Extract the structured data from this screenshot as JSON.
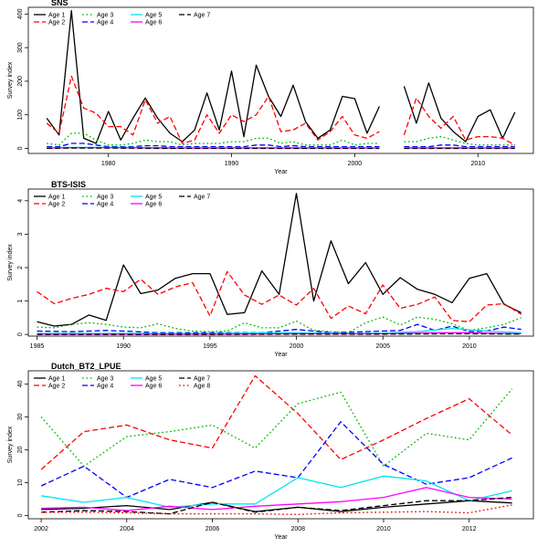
{
  "chart_data": [
    {
      "type": "line",
      "title": "SNS",
      "xlabel": "Year",
      "ylabel": "Survey index",
      "xlim": [
        1973.5,
        2014.5
      ],
      "ylim": [
        -15,
        420
      ],
      "xticks": [
        1980,
        1990,
        2000,
        2010
      ],
      "yticks": [
        0,
        100,
        200,
        300,
        400
      ],
      "legend_position": "top-left",
      "series": [
        {
          "name": "Age 1",
          "color": "#000000",
          "dash": "solid",
          "x": [
            1975,
            1976,
            1977,
            1978,
            1979,
            1980,
            1981,
            1982,
            1983,
            1984,
            1985,
            1986,
            1987,
            1988,
            1989,
            1990,
            1991,
            1992,
            1993,
            1994,
            1995,
            1996,
            1997,
            1998,
            1999,
            2000,
            2001,
            2002,
            null,
            2004,
            2005,
            2006,
            2007,
            2008,
            2009,
            2010,
            2011,
            2012,
            2013
          ],
          "y": [
            90,
            40,
            410,
            30,
            15,
            110,
            25,
            90,
            150,
            90,
            45,
            20,
            55,
            165,
            55,
            230,
            35,
            248,
            155,
            95,
            188,
            80,
            30,
            55,
            155,
            148,
            45,
            125,
            null,
            185,
            75,
            195,
            90,
            50,
            20,
            95,
            115,
            30,
            108
          ]
        },
        {
          "name": "Age 2",
          "color": "#ff0000",
          "dash": "dashed",
          "x": [
            1975,
            1976,
            1977,
            1978,
            1979,
            1980,
            1981,
            1982,
            1983,
            1984,
            1985,
            1986,
            1987,
            1988,
            1989,
            1990,
            1991,
            1992,
            1993,
            1994,
            1995,
            1996,
            1997,
            1998,
            1999,
            2000,
            2001,
            2002,
            null,
            2004,
            2005,
            2006,
            2007,
            2008,
            2009,
            2010,
            2011,
            2012,
            2013
          ],
          "y": [
            75,
            45,
            215,
            120,
            105,
            65,
            65,
            40,
            145,
            75,
            95,
            15,
            25,
            100,
            45,
            100,
            80,
            100,
            155,
            50,
            55,
            75,
            25,
            50,
            95,
            40,
            30,
            50,
            null,
            40,
            150,
            95,
            60,
            95,
            25,
            35,
            35,
            30,
            10
          ]
        },
        {
          "name": "Age 3",
          "color": "#00bb00",
          "dash": "dotted",
          "x": [
            1975,
            1976,
            1977,
            1978,
            1979,
            1980,
            1981,
            1982,
            1983,
            1984,
            1985,
            1986,
            1987,
            1988,
            1989,
            1990,
            1991,
            1992,
            1993,
            1994,
            1995,
            1996,
            1997,
            1998,
            1999,
            2000,
            2001,
            2002,
            null,
            2004,
            2005,
            2006,
            2007,
            2008,
            2009,
            2010,
            2011,
            2012,
            2013
          ],
          "y": [
            15,
            10,
            45,
            45,
            25,
            10,
            10,
            15,
            25,
            20,
            20,
            10,
            15,
            15,
            15,
            20,
            20,
            30,
            30,
            15,
            20,
            10,
            10,
            10,
            25,
            10,
            15,
            15,
            null,
            20,
            20,
            30,
            35,
            25,
            15,
            10,
            10,
            10,
            10
          ]
        },
        {
          "name": "Age 4",
          "color": "#0000ff",
          "dash": "dashed",
          "x": [
            1975,
            1976,
            1977,
            1978,
            1979,
            1980,
            1981,
            1982,
            1983,
            1984,
            1985,
            1986,
            1987,
            1988,
            1989,
            1990,
            1991,
            1992,
            1993,
            1994,
            1995,
            1996,
            1997,
            1998,
            1999,
            2000,
            2001,
            2002,
            null,
            2004,
            2005,
            2006,
            2007,
            2008,
            2009,
            2010,
            2011,
            2012,
            2013
          ],
          "y": [
            5,
            5,
            15,
            15,
            10,
            5,
            5,
            5,
            8,
            8,
            5,
            5,
            5,
            5,
            5,
            5,
            5,
            10,
            10,
            5,
            8,
            5,
            5,
            5,
            5,
            5,
            5,
            5,
            null,
            5,
            5,
            5,
            10,
            10,
            5,
            5,
            5,
            5,
            5
          ]
        },
        {
          "name": "Age 5",
          "color": "#00e5ee",
          "dash": "solid",
          "x": [
            1975,
            1977,
            1980,
            1985,
            1990,
            1995,
            2000,
            2002,
            null,
            2004,
            2008,
            2013
          ],
          "y": [
            2,
            3,
            3,
            2,
            2,
            2,
            2,
            2,
            null,
            2,
            2,
            2
          ]
        },
        {
          "name": "Age 6",
          "color": "#ff00ff",
          "dash": "solid",
          "x": [
            1975,
            1977,
            1980,
            1985,
            1990,
            1995,
            2000,
            2002,
            null,
            2004,
            2008,
            2013
          ],
          "y": [
            1,
            2,
            2,
            1,
            1,
            1,
            1,
            1,
            null,
            1,
            1,
            1
          ]
        },
        {
          "name": "Age 7",
          "color": "#000000",
          "dash": "dashed",
          "x": [
            1975,
            1977,
            1980,
            1985,
            1990,
            1995,
            2000,
            2002,
            null,
            2004,
            2008,
            2013
          ],
          "y": [
            0,
            1,
            1,
            0,
            0,
            0,
            0,
            0,
            null,
            0,
            0,
            0
          ]
        }
      ]
    },
    {
      "type": "line",
      "title": "BTS-ISIS",
      "xlabel": "Year",
      "ylabel": "Survey index",
      "xlim": [
        1984.5,
        2013.7
      ],
      "ylim": [
        -0.05,
        4.35
      ],
      "xticks": [
        1985,
        1990,
        1995,
        2000,
        2005,
        2010
      ],
      "yticks": [
        0,
        1,
        2,
        3,
        4
      ],
      "legend_position": "top-left",
      "series": [
        {
          "name": "Age 1",
          "color": "#000000",
          "dash": "solid",
          "x": [
            1985,
            1986,
            1987,
            1988,
            1989,
            1990,
            1991,
            1992,
            1993,
            1994,
            1995,
            1996,
            1997,
            1998,
            1999,
            2000,
            2001,
            2002,
            2003,
            2004,
            2005,
            2006,
            2007,
            2008,
            2009,
            2010,
            2011,
            2012,
            2013
          ],
          "y": [
            0.38,
            0.25,
            0.3,
            0.58,
            0.42,
            2.08,
            1.22,
            1.33,
            1.68,
            1.82,
            1.82,
            0.6,
            0.65,
            1.9,
            1.2,
            4.22,
            1.0,
            2.8,
            1.52,
            2.15,
            1.2,
            1.7,
            1.35,
            1.2,
            0.95,
            1.68,
            1.82,
            0.9,
            0.65
          ]
        },
        {
          "name": "Age 2",
          "color": "#ff0000",
          "dash": "dashed",
          "x": [
            1985,
            1986,
            1987,
            1988,
            1989,
            1990,
            1991,
            1992,
            1993,
            1994,
            1995,
            1996,
            1997,
            1998,
            1999,
            2000,
            2001,
            2002,
            2003,
            2004,
            2005,
            2006,
            2007,
            2008,
            2009,
            2010,
            2011,
            2012,
            2013
          ],
          "y": [
            1.28,
            0.92,
            1.08,
            1.2,
            1.38,
            1.28,
            1.65,
            1.2,
            1.42,
            1.55,
            0.55,
            1.88,
            1.18,
            0.9,
            1.18,
            0.88,
            1.38,
            0.48,
            0.85,
            0.62,
            1.48,
            0.78,
            0.9,
            1.12,
            0.42,
            0.38,
            0.88,
            0.92,
            0.6
          ]
        },
        {
          "name": "Age 3",
          "color": "#00bb00",
          "dash": "dotted",
          "x": [
            1985,
            1986,
            1987,
            1988,
            1989,
            1990,
            1991,
            1992,
            1993,
            1994,
            1995,
            1996,
            1997,
            1998,
            1999,
            2000,
            2001,
            2002,
            2003,
            2004,
            2005,
            2006,
            2007,
            2008,
            2009,
            2010,
            2011,
            2012,
            2013
          ],
          "y": [
            0.22,
            0.2,
            0.3,
            0.35,
            0.3,
            0.22,
            0.2,
            0.32,
            0.18,
            0.1,
            0.08,
            0.1,
            0.35,
            0.2,
            0.2,
            0.4,
            0.12,
            0.08,
            0.05,
            0.35,
            0.52,
            0.28,
            0.52,
            0.45,
            0.32,
            0.12,
            0.2,
            0.3,
            0.5
          ]
        },
        {
          "name": "Age 4",
          "color": "#0000ff",
          "dash": "dashed",
          "x": [
            1985,
            1987,
            1989,
            1990,
            1992,
            1995,
            1998,
            2000,
            2002,
            2004,
            2005,
            2006,
            2007,
            2008,
            2009,
            2010,
            2011,
            2012,
            2013
          ],
          "y": [
            0.1,
            0.08,
            0.12,
            0.1,
            0.05,
            0.05,
            0.05,
            0.15,
            0.05,
            0.08,
            0.1,
            0.12,
            0.3,
            0.12,
            0.25,
            0.08,
            0.1,
            0.22,
            0.15
          ]
        },
        {
          "name": "Age 5",
          "color": "#00e5ee",
          "dash": "solid",
          "x": [
            1985,
            1990,
            1995,
            1998,
            2000,
            2003,
            2005,
            2007,
            2009,
            2011,
            2013
          ],
          "y": [
            0.03,
            0.03,
            0.02,
            0.05,
            0.05,
            0.03,
            0.04,
            0.08,
            0.18,
            0.1,
            0.05
          ]
        },
        {
          "name": "Age 6",
          "color": "#ff00ff",
          "dash": "solid",
          "x": [
            1985,
            1990,
            1995,
            2000,
            2005,
            2008,
            2010,
            2013
          ],
          "y": [
            0.01,
            0.01,
            0.01,
            0.02,
            0.02,
            0.05,
            0.05,
            0.02
          ]
        },
        {
          "name": "Age 7",
          "color": "#000000",
          "dash": "dashed",
          "x": [
            1985,
            1990,
            1995,
            2000,
            2005,
            2010,
            2013
          ],
          "y": [
            0,
            0,
            0,
            0.01,
            0.01,
            0.02,
            0.01
          ]
        }
      ]
    },
    {
      "type": "line",
      "title": "Dutch_BT2_LPUE",
      "xlabel": "Year",
      "ylabel": "Survey index",
      "xlim": [
        2001.7,
        2013.5
      ],
      "ylim": [
        -1,
        44
      ],
      "xticks": [
        2002,
        2004,
        2006,
        2008,
        2010,
        2012
      ],
      "yticks": [
        0,
        10,
        20,
        30,
        40
      ],
      "legend_position": "top-left",
      "series": [
        {
          "name": "Age 1",
          "color": "#000000",
          "dash": "solid",
          "x": [
            2002,
            2003,
            2004,
            2005,
            2006,
            2007,
            2008,
            2009,
            2010,
            2011,
            2012,
            2013
          ],
          "y": [
            1.8,
            2.2,
            3.0,
            1.8,
            4.0,
            1.2,
            2.5,
            1.2,
            2.5,
            3.5,
            4.5,
            3.8
          ]
        },
        {
          "name": "Age 2",
          "color": "#ff0000",
          "dash": "dashed",
          "x": [
            2002,
            2003,
            2004,
            2005,
            2006,
            2007,
            2008,
            2009,
            2010,
            2011,
            2012,
            2013
          ],
          "y": [
            14,
            25.5,
            27.5,
            23,
            20.5,
            42.5,
            31,
            17,
            23,
            29.5,
            35.5,
            24.5
          ]
        },
        {
          "name": "Age 3",
          "color": "#00bb00",
          "dash": "dotted",
          "x": [
            2002,
            2003,
            2004,
            2005,
            2006,
            2007,
            2008,
            2009,
            2010,
            2011,
            2012,
            2013
          ],
          "y": [
            30,
            15,
            24,
            25.5,
            27.5,
            20.5,
            34,
            37.5,
            15,
            25,
            23,
            38.5
          ]
        },
        {
          "name": "Age 4",
          "color": "#0000ff",
          "dash": "dashed",
          "x": [
            2002,
            2003,
            2004,
            2005,
            2006,
            2007,
            2008,
            2009,
            2010,
            2011,
            2012,
            2013
          ],
          "y": [
            9,
            15,
            5.5,
            11,
            8.5,
            13.5,
            11.5,
            28.5,
            15.5,
            9.5,
            11.5,
            17.5
          ]
        },
        {
          "name": "Age 5",
          "color": "#00e5ee",
          "dash": "solid",
          "x": [
            2002,
            2003,
            2004,
            2005,
            2006,
            2007,
            2008,
            2009,
            2010,
            2011,
            2012,
            2013
          ],
          "y": [
            6,
            4,
            5.5,
            2.5,
            3.5,
            3.5,
            11.5,
            8.5,
            12,
            10.5,
            4.5,
            7.5
          ]
        },
        {
          "name": "Age 6",
          "color": "#ff00ff",
          "dash": "solid",
          "x": [
            2002,
            2003,
            2004,
            2005,
            2006,
            2007,
            2008,
            2009,
            2010,
            2011,
            2012,
            2013
          ],
          "y": [
            2.2,
            2.5,
            1.5,
            2.8,
            1.8,
            2.8,
            3.5,
            4.2,
            5.5,
            8.5,
            5.5,
            5.0
          ]
        },
        {
          "name": "Age 7",
          "color": "#000000",
          "dash": "dashed",
          "x": [
            2002,
            2003,
            2004,
            2005,
            2006,
            2007,
            2008,
            2009,
            2010,
            2011,
            2012,
            2013
          ],
          "y": [
            1.0,
            1.5,
            1.2,
            0.5,
            4.0,
            1.0,
            2.5,
            1.5,
            3.0,
            4.5,
            4.5,
            5.5
          ]
        },
        {
          "name": "Age 8",
          "color": "#ff0000",
          "dash": "dotted",
          "x": [
            2002,
            2003,
            2004,
            2005,
            2006,
            2007,
            2008,
            2009,
            2010,
            2011,
            2012,
            2013
          ],
          "y": [
            1.0,
            1.0,
            0.8,
            0.5,
            0.5,
            0.5,
            0.3,
            0.8,
            1.0,
            1.2,
            0.8,
            3.2
          ]
        }
      ]
    }
  ]
}
